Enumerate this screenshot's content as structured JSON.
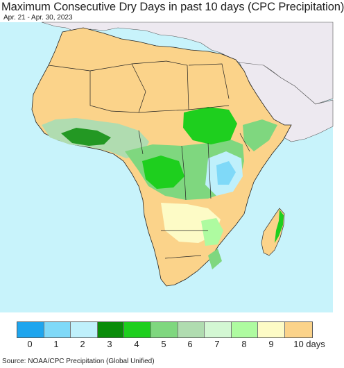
{
  "title": "Maximum Consecutive Dry Days in past 10 days (CPC Precipitation)",
  "date_range": "Apr. 21 - Apr. 30, 2023",
  "source": "Source: NOAA/CPC Precipitation (Global Unified)",
  "colors": {
    "ocean": "#c8f3fb",
    "land_outside": "#ede9f0",
    "dry_10": "#fbd38a",
    "border": "#222222"
  },
  "legend": {
    "items": [
      {
        "label": "0",
        "color": "#1ea5ee"
      },
      {
        "label": "1",
        "color": "#7fd9f8"
      },
      {
        "label": "2",
        "color": "#bff0fb"
      },
      {
        "label": "3",
        "color": "#0a8c0a"
      },
      {
        "label": "4",
        "color": "#1ecf1e"
      },
      {
        "label": "5",
        "color": "#7fd77f"
      },
      {
        "label": "6",
        "color": "#b0dcb0"
      },
      {
        "label": "7",
        "color": "#d3f7d3"
      },
      {
        "label": "8",
        "color": "#aefba0"
      },
      {
        "label": "9",
        "color": "#fdfbc6"
      },
      {
        "label": "10 days",
        "color": "#fbd38a"
      }
    ]
  }
}
